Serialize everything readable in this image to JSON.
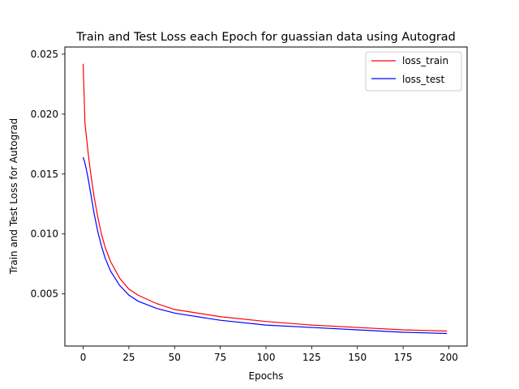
{
  "chart_data": {
    "type": "line",
    "title": "Train and Test Loss each Epoch for guassian data using Autograd",
    "xlabel": "Epochs",
    "ylabel": "Train and Test Loss for Autograd",
    "xlim": [
      -10,
      210
    ],
    "ylim": [
      0.00065,
      0.0256
    ],
    "xticks": [
      0,
      25,
      50,
      75,
      100,
      125,
      150,
      175,
      200
    ],
    "yticks": [
      0.005,
      0.01,
      0.015,
      0.02,
      0.025
    ],
    "ytick_labels": [
      "0.005",
      "0.010",
      "0.015",
      "0.020",
      "0.025"
    ],
    "grid": false,
    "legend_position": "top-right",
    "series": [
      {
        "name": "loss_train",
        "color": "#ff0000",
        "x": [
          0,
          1,
          2,
          3,
          4,
          5,
          6,
          8,
          10,
          12,
          15,
          20,
          25,
          30,
          40,
          50,
          75,
          100,
          125,
          150,
          175,
          199
        ],
        "values": [
          0.0242,
          0.0192,
          0.0178,
          0.0164,
          0.0152,
          0.0141,
          0.0131,
          0.0114,
          0.01,
          0.0089,
          0.0077,
          0.0063,
          0.0054,
          0.0049,
          0.0042,
          0.0037,
          0.0031,
          0.0027,
          0.0024,
          0.0022,
          0.002,
          0.0019
        ]
      },
      {
        "name": "loss_test",
        "color": "#0000ff",
        "x": [
          0,
          1,
          2,
          3,
          4,
          5,
          6,
          8,
          10,
          12,
          15,
          20,
          25,
          30,
          40,
          50,
          75,
          100,
          125,
          150,
          175,
          199
        ],
        "values": [
          0.0164,
          0.0159,
          0.0152,
          0.0144,
          0.0135,
          0.0126,
          0.0117,
          0.0102,
          0.009,
          0.008,
          0.0069,
          0.0057,
          0.0049,
          0.0044,
          0.0038,
          0.0034,
          0.0028,
          0.0024,
          0.0022,
          0.002,
          0.0018,
          0.0017
        ]
      }
    ]
  }
}
